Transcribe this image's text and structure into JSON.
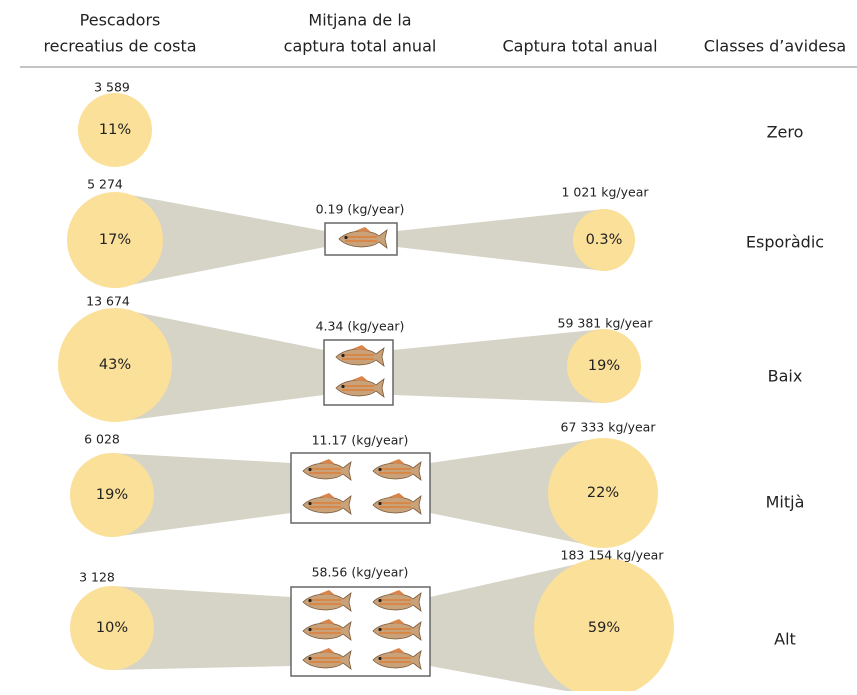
{
  "headers": {
    "anglers": [
      "Pescadors",
      "recreatius de costa"
    ],
    "mean_catch": [
      "Mitjana de la",
      "captura total anual"
    ],
    "total_catch": [
      "Captura total anual"
    ],
    "class": [
      "Classes d’avidesa"
    ]
  },
  "rows": [
    {
      "anglers": "3 589",
      "anglers_share": "11%",
      "class": "Zero"
    },
    {
      "anglers": "5 274",
      "anglers_share": "17%",
      "mean_catch": "0.19 (kg/year)",
      "total_catch": "1 021 kg/year",
      "total_share": "0.3%",
      "class": "Esporàdic"
    },
    {
      "anglers": "13 674",
      "anglers_share": "43%",
      "mean_catch": "4.34 (kg/year)",
      "total_catch": "59 381 kg/year",
      "total_share": "19%",
      "class": "Baix"
    },
    {
      "anglers": "6 028",
      "anglers_share": "19%",
      "mean_catch": "11.17 (kg/year)",
      "total_catch": "67 333 kg/year",
      "total_share": "22%",
      "class": "Mitjà"
    },
    {
      "anglers": "3 128",
      "anglers_share": "10%",
      "mean_catch": "58.56 (kg/year)",
      "total_catch": "183 154 kg/year",
      "total_share": "59%",
      "class": "Alt"
    }
  ]
}
